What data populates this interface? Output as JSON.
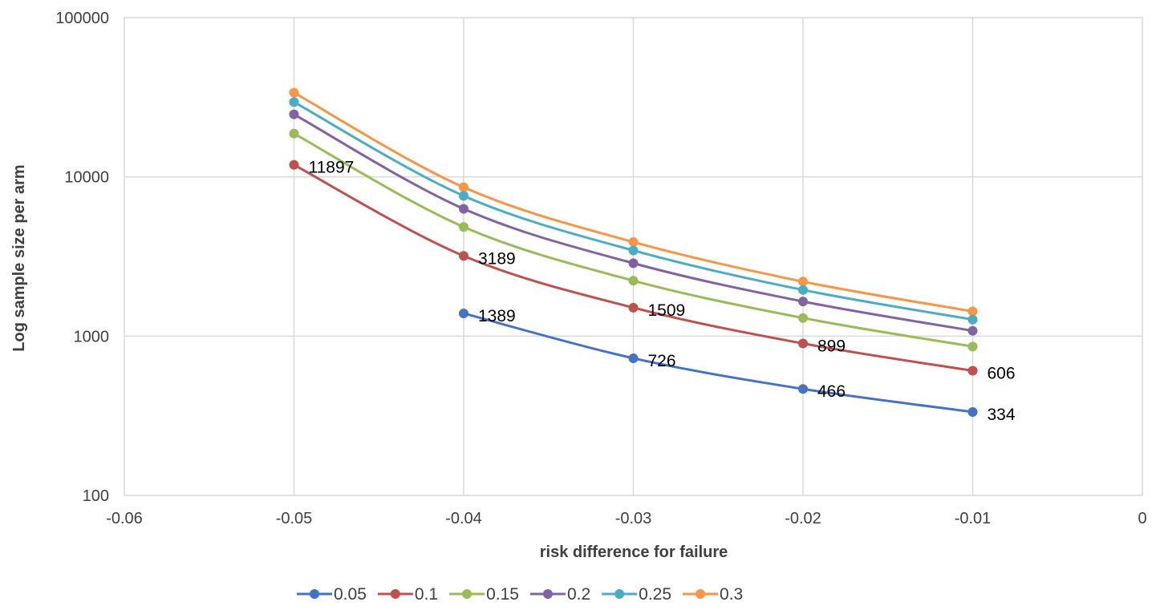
{
  "chart_data": {
    "type": "line",
    "title": "",
    "xlabel": "risk difference for failure",
    "ylabel": "Log sample size per arm",
    "y_scale": "log",
    "xlim": [
      -0.06,
      0
    ],
    "ylim": [
      100,
      100000
    ],
    "x_ticks": [
      "-0.06",
      "-0.05",
      "-0.04",
      "-0.03",
      "-0.02",
      "-0.01",
      "0"
    ],
    "y_ticks": [
      "100",
      "1000",
      "10000",
      "100000"
    ],
    "grid": true,
    "legend_position": "bottom",
    "x": [
      -0.05,
      -0.04,
      -0.03,
      -0.02,
      -0.01
    ],
    "series": [
      {
        "name": "0.05",
        "color": "#4472C4",
        "values": [
          null,
          1389,
          726,
          466,
          334
        ],
        "labels": [
          "",
          "1389",
          "726",
          "466",
          "334"
        ]
      },
      {
        "name": "0.1",
        "color": "#C0504D",
        "values": [
          11897,
          3189,
          1509,
          899,
          606
        ],
        "labels": [
          "11897",
          "3189",
          "1509",
          "899",
          "606"
        ]
      },
      {
        "name": "0.15",
        "color": "#9BBB59",
        "values": [
          18700,
          4850,
          2230,
          1300,
          860
        ]
      },
      {
        "name": "0.2",
        "color": "#8064A2",
        "values": [
          24700,
          6300,
          2870,
          1650,
          1080
        ]
      },
      {
        "name": "0.25",
        "color": "#4BACC6",
        "values": [
          29500,
          7600,
          3450,
          1950,
          1270
        ]
      },
      {
        "name": "0.3",
        "color": "#F79646",
        "values": [
          33800,
          8600,
          3900,
          2200,
          1430
        ]
      }
    ]
  }
}
